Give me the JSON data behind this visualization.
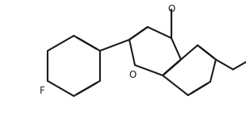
{
  "background": "#ffffff",
  "line_color": "#1a1a1a",
  "line_width": 1.5,
  "font_size": 8.5,
  "label_F": "F",
  "label_O_ring": "O",
  "label_O_carbonyl": "O",
  "figsize": [
    3.1,
    1.55
  ],
  "dpi": 100
}
